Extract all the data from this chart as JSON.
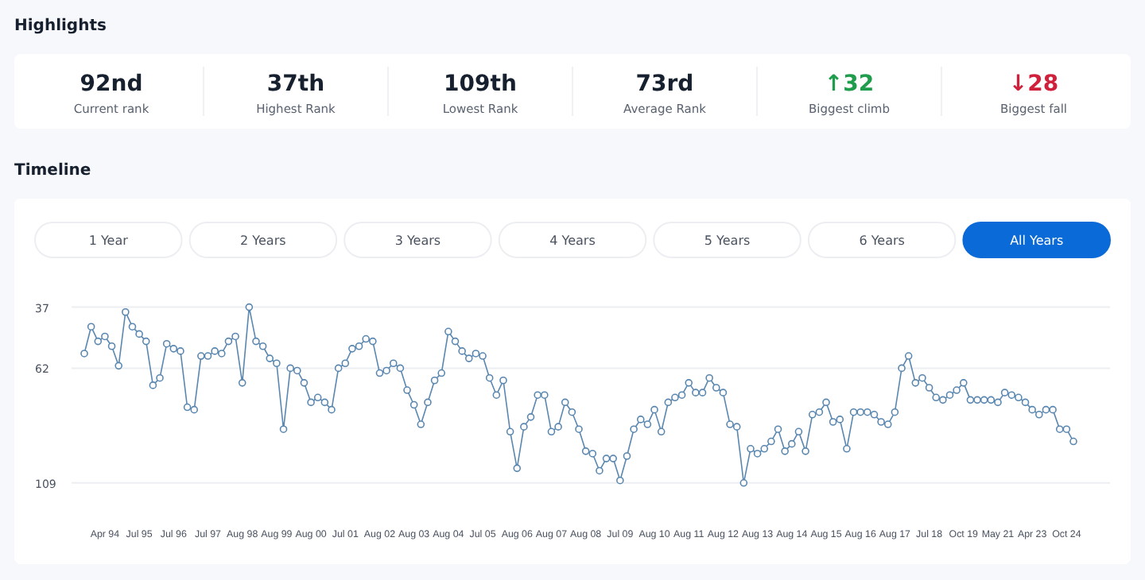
{
  "chart_data": [
    {
      "type": "other",
      "title": "Highlights",
      "annotations": [
        "92nd",
        "Current rank",
        "37th",
        "Highest Rank",
        "109th",
        "Lowest Rank",
        "73rd",
        "Average Rank",
        "↑32",
        "Biggest climb",
        "↓28",
        "Biggest fall"
      ]
    },
    {
      "type": "line",
      "title": "Timeline",
      "annotations": [
        "1 Year",
        "2 Years",
        "3 Years",
        "4 Years",
        "5 Years",
        "6 Years",
        "All Years"
      ],
      "categories": [
        null,
        null,
        null,
        "Apr 94",
        null,
        null,
        null,
        null,
        "Jul 95",
        null,
        null,
        null,
        null,
        "Jul 96",
        null,
        null,
        null,
        null,
        "Jul 97",
        null,
        null,
        null,
        null,
        "Aug 98",
        null,
        null,
        null,
        null,
        "Aug 99",
        null,
        null,
        null,
        null,
        "Aug 00",
        null,
        null,
        null,
        null,
        "Jul 01",
        null,
        null,
        null,
        null,
        "Aug 02",
        null,
        null,
        null,
        null,
        "Aug 03",
        null,
        null,
        null,
        null,
        "Aug 04",
        null,
        null,
        null,
        null,
        "Jul 05",
        null,
        null,
        null,
        null,
        "Aug 06",
        null,
        null,
        null,
        null,
        "Aug 07",
        null,
        null,
        null,
        null,
        "Aug 08",
        null,
        null,
        null,
        null,
        "Jul 09",
        null,
        null,
        null,
        null,
        "Aug 10",
        null,
        null,
        null,
        null,
        "Aug 11",
        null,
        null,
        null,
        null,
        "Aug 12",
        null,
        null,
        null,
        null,
        "Aug 13",
        null,
        null,
        null,
        null,
        "Aug 14",
        null,
        null,
        null,
        null,
        "Aug 15",
        null,
        null,
        null,
        null,
        "Aug 16",
        null,
        null,
        null,
        null,
        "Aug 17",
        null,
        null,
        null,
        null,
        "Jul 18",
        null,
        null,
        null,
        null,
        "Oct 19",
        null,
        null,
        null,
        null,
        "May 21",
        null,
        null,
        null,
        null,
        "Apr 23",
        null,
        null,
        null,
        null,
        "Oct 24",
        null
      ],
      "values": [
        56,
        45,
        51,
        49,
        53,
        61,
        39,
        45,
        48,
        51,
        69,
        66,
        52,
        54,
        55,
        78,
        79,
        57,
        57,
        55,
        56,
        51,
        49,
        68,
        37,
        51,
        53,
        58,
        60,
        87,
        62,
        63,
        68,
        76,
        74,
        76,
        79,
        62,
        60,
        54,
        53,
        50,
        51,
        64,
        63,
        60,
        62,
        71,
        77,
        85,
        76,
        67,
        64,
        47,
        51,
        55,
        58,
        56,
        57,
        66,
        73,
        67,
        88,
        103,
        86,
        82,
        73,
        73,
        88,
        86,
        76,
        80,
        87,
        96,
        97,
        104,
        99,
        99,
        108,
        98,
        87,
        83,
        85,
        79,
        88,
        76,
        74,
        73,
        68,
        72,
        72,
        66,
        70,
        72,
        85,
        86,
        109,
        95,
        97,
        95,
        92,
        87,
        96,
        93,
        88,
        96,
        81,
        80,
        76,
        84,
        83,
        95,
        80,
        80,
        80,
        81,
        84,
        85,
        80,
        62,
        57,
        68,
        66,
        70,
        74,
        75,
        73,
        71,
        68,
        75,
        75,
        75,
        75,
        76,
        72,
        73,
        74,
        76,
        79,
        81,
        79,
        79,
        87,
        87,
        92
      ],
      "color": "#5a87b0",
      "marker": "circle",
      "ylim": [
        109,
        37
      ],
      "yticks": [
        37,
        62,
        109
      ],
      "grid": "y"
    }
  ]
}
